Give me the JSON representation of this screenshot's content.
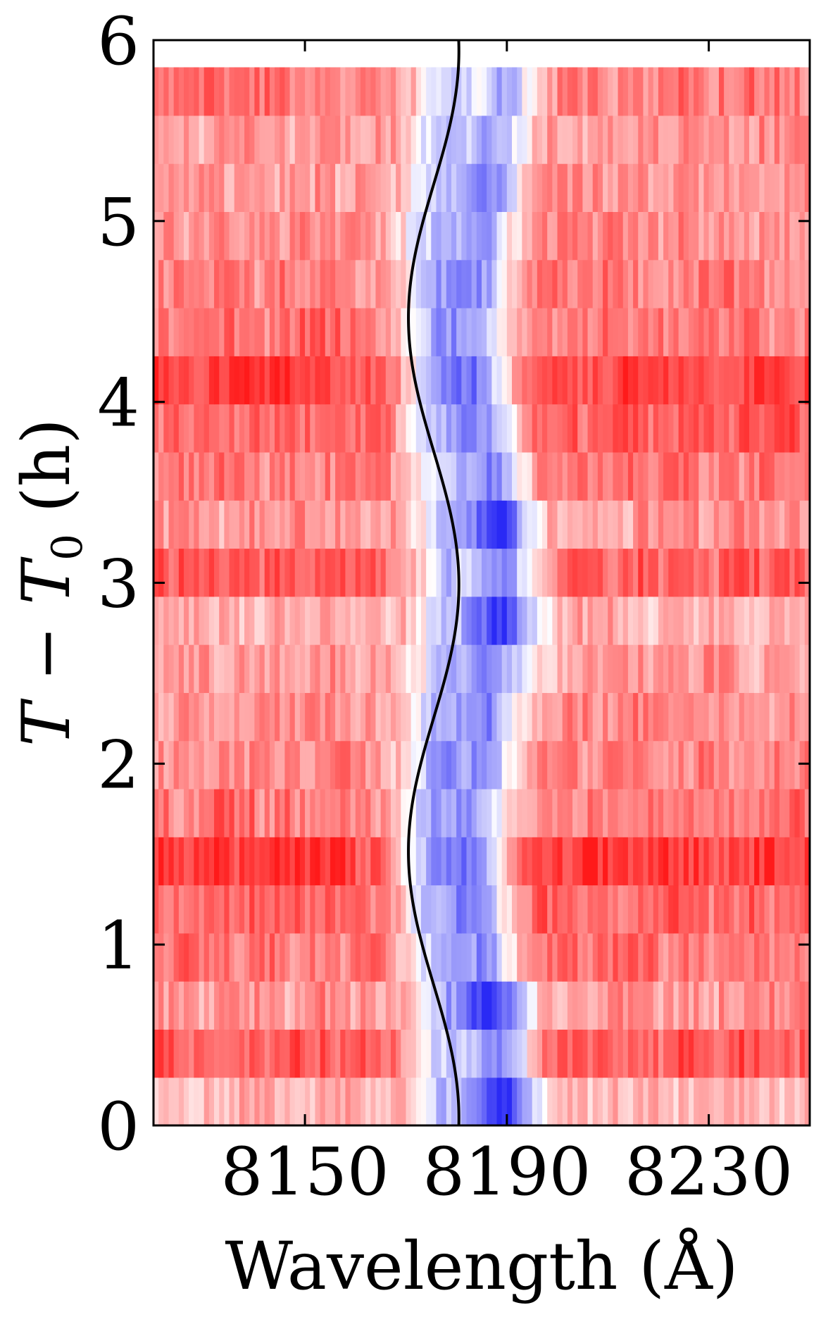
{
  "chart_data": {
    "type": "heatmap",
    "title": "",
    "xlabel": "Wavelength (Å)",
    "ylabel": "T − T0 (h)",
    "ylabel_parts": {
      "main": "T",
      "minus": "−",
      "sub_base": "T",
      "sub_index": "0",
      "unit": "(h)"
    },
    "xlim": [
      8120,
      8250
    ],
    "ylim": [
      0,
      6
    ],
    "data_ymax": 5.85,
    "x_ticks": [
      8150,
      8190,
      8230
    ],
    "y_ticks": [
      0,
      1,
      2,
      3,
      4,
      5,
      6
    ],
    "colormap": "bwr",
    "colors": {
      "low": "#2a2af5",
      "mid": "#ffffff",
      "high": "#ff1a1a",
      "curve": "#000000"
    },
    "row_count": 22,
    "line_center_A": 8186,
    "line_width_A": 7,
    "row_absorption": [
      0.95,
      0.55,
      1.0,
      0.5,
      0.6,
      0.55,
      0.5,
      0.55,
      0.5,
      0.55,
      0.95,
      0.55,
      1.0,
      0.5,
      0.6,
      0.55,
      0.5,
      0.55,
      0.5,
      0.55,
      0.45,
      0.3
    ],
    "row_redness": [
      0.35,
      0.7,
      0.45,
      0.6,
      0.65,
      0.85,
      0.6,
      0.55,
      0.5,
      0.45,
      0.35,
      0.7,
      0.45,
      0.6,
      0.7,
      0.85,
      0.6,
      0.55,
      0.5,
      0.45,
      0.45,
      0.55
    ],
    "curve": {
      "label": "",
      "center_A": 8175.5,
      "amplitude_A": 5,
      "period_h": 2.95,
      "phase_h": 2.99,
      "t_range": [
        0,
        6
      ]
    }
  }
}
